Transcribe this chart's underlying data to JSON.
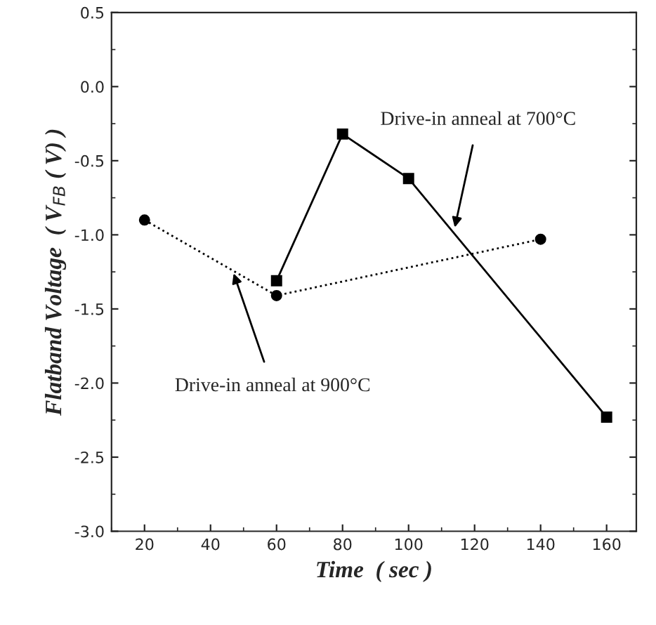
{
  "chart_data": {
    "type": "line",
    "xlabel": "Time  ( sec )",
    "ylabel": "Flatband Voltage  ( V$_{FB}$ ( V) )",
    "xlim": [
      10,
      169
    ],
    "xticks": [
      20,
      40,
      60,
      80,
      100,
      120,
      140,
      160
    ],
    "ylim": [
      -3.0,
      0.5
    ],
    "yticks": [
      {
        "value": -3.0,
        "label": "-3.0"
      },
      {
        "value": -2.5,
        "label": "-2.5"
      },
      {
        "value": -2.0,
        "label": "-2.0"
      },
      {
        "value": -1.5,
        "label": "-1.5"
      },
      {
        "value": -1.0,
        "label": "-1.0"
      },
      {
        "value": -0.5,
        "label": "-0.5"
      },
      {
        "value": 0.0,
        "label": "0.0"
      },
      {
        "value": 0.5,
        "label": "0.5"
      }
    ],
    "grid": false,
    "legend": false,
    "series": [
      {
        "color": "#000000",
        "x": [
          60,
          80,
          100,
          160
        ],
        "values": [
          -1.31,
          -0.32,
          -0.62,
          -2.23
        ],
        "marker": "square",
        "line_style": "solid"
      },
      {
        "color": "#000000",
        "x": [
          20,
          60,
          140
        ],
        "values": [
          -0.9,
          -1.41,
          -1.03
        ],
        "marker": "circle",
        "line_style": "dotted"
      }
    ],
    "annotations": [
      {
        "text": "Drive-in anneal at 700°C",
        "x": 114,
        "y": -0.95
      },
      {
        "text": "Drive-in anneal at 900°C",
        "x": 47,
        "y": -1.26
      }
    ]
  }
}
